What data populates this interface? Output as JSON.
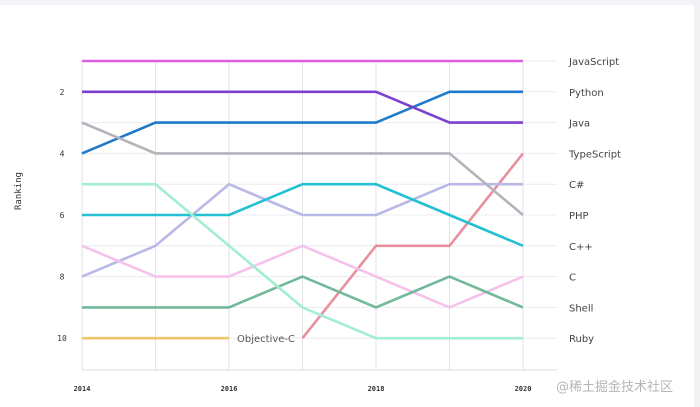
{
  "chart_data": {
    "type": "line",
    "title": "",
    "xlabel": "",
    "ylabel": "Ranking",
    "x": [
      2014,
      2015,
      2016,
      2017,
      2018,
      2019,
      2020
    ],
    "x_tick_labels": [
      "2014",
      "2016",
      "2018",
      "2020"
    ],
    "y_tick_labels": [
      "2",
      "4",
      "6",
      "8",
      "10"
    ],
    "ylim": [
      11,
      0.5
    ],
    "grid": true,
    "series": [
      {
        "name": "JavaScript",
        "color": "#e05de6",
        "values": [
          1,
          1,
          1,
          1,
          1,
          1,
          1
        ]
      },
      {
        "name": "Python",
        "color": "#1f7acb",
        "values": [
          4,
          3,
          3,
          3,
          3,
          2,
          2
        ]
      },
      {
        "name": "Java",
        "color": "#7d3fd0",
        "values": [
          2,
          2,
          2,
          2,
          2,
          3,
          3
        ]
      },
      {
        "name": "TypeScript",
        "color": "#e8909f",
        "values": [
          null,
          null,
          null,
          10,
          7,
          7,
          4
        ]
      },
      {
        "name": "C#",
        "color": "#b9b9e6",
        "values": [
          8,
          7,
          5,
          6,
          6,
          5,
          5
        ]
      },
      {
        "name": "PHP",
        "color": "#b3b3bb",
        "values": [
          3,
          4,
          4,
          4,
          4,
          4,
          6
        ]
      },
      {
        "name": "C++",
        "color": "#22c0d2",
        "values": [
          6,
          6,
          6,
          5,
          5,
          6,
          7
        ]
      },
      {
        "name": "C",
        "color": "#f5c2ea",
        "values": [
          7,
          8,
          8,
          7,
          8,
          9,
          8
        ]
      },
      {
        "name": "Shell",
        "color": "#72b99a",
        "values": [
          9,
          9,
          9,
          8,
          9,
          8,
          9
        ]
      },
      {
        "name": "Ruby",
        "color": "#a3eed3",
        "values": [
          5,
          5,
          7,
          9,
          10,
          10,
          10
        ]
      },
      {
        "name": "Objective-C",
        "color": "#f0c468",
        "values": [
          10,
          10,
          10,
          null,
          null,
          null,
          null
        ],
        "inline_label": "Objective-C"
      }
    ],
    "right_labels": [
      "JavaScript",
      "Python",
      "Java",
      "TypeScript",
      "C#",
      "PHP",
      "C++",
      "C",
      "Shell",
      "Ruby"
    ]
  },
  "watermark": "@稀土掘金技术社区"
}
